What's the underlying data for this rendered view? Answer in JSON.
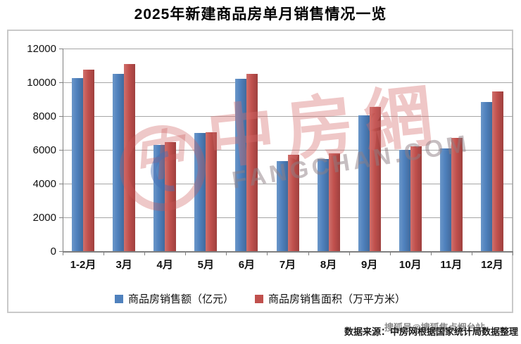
{
  "title": "2025年新建商品房单月销售情况一览",
  "chart_data": {
    "type": "bar",
    "categories": [
      "1-2月",
      "3月",
      "4月",
      "5月",
      "6月",
      "7月",
      "8月",
      "9月",
      "10月",
      "11月",
      "12月"
    ],
    "series": [
      {
        "name": "商品房销售额（亿元）",
        "color": "#4F81BD",
        "values": [
          10250,
          10500,
          6300,
          7000,
          10200,
          5350,
          5450,
          8050,
          6000,
          6100,
          8850
        ]
      },
      {
        "name": "商品房销售面积（万平方米）",
        "color": "#C0504D",
        "values": [
          10750,
          11100,
          6450,
          7050,
          10500,
          5700,
          5800,
          8550,
          6200,
          6700,
          9450
        ]
      }
    ],
    "title": "2025年新建商品房单月销售情况一览",
    "xlabel": "",
    "ylabel": "",
    "ylim": [
      0,
      12000
    ],
    "yticks": [
      0,
      2000,
      4000,
      6000,
      8000,
      10000,
      12000
    ],
    "grid": true,
    "legend_position": "bottom",
    "colors": {
      "bar_blue": "#4F81BD",
      "bar_red": "#C0504D",
      "gridline": "#A6A6A6",
      "axis": "#808080"
    }
  },
  "watermark": {
    "logo_text": "中房網",
    "domain_text": "FANGCHAN.COM"
  },
  "footer": {
    "source": "数据来源：中房网根据国家统计局数据整理",
    "sohu_watermark": "搜狐号@搜狐焦点烟台站"
  }
}
